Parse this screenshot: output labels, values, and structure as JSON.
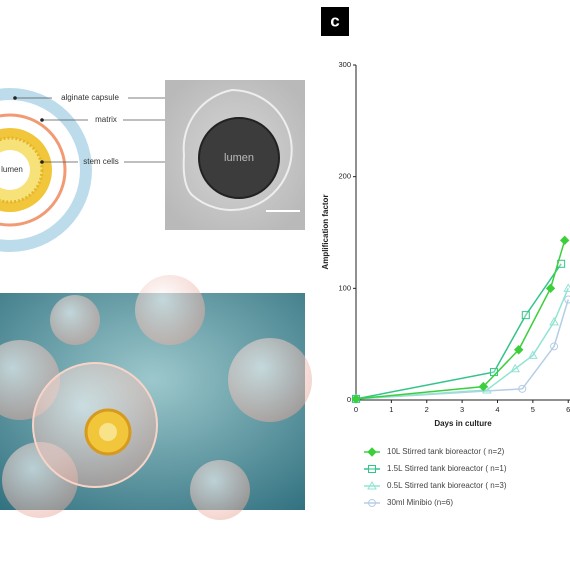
{
  "panel_label": "c",
  "diagram": {
    "labels": [
      "alginate capsule",
      "matrix",
      "stem cells"
    ],
    "center_label": "lumen",
    "micrograph_label": "lumen"
  },
  "chart_data": {
    "type": "line",
    "x_label": "Days in culture",
    "y_label": "Amplification factor",
    "xlim": [
      0,
      6.05
    ],
    "xticks": [
      0,
      1,
      2,
      3,
      4,
      5,
      6
    ],
    "ylim": [
      0,
      300
    ],
    "yticks": [
      0,
      100,
      200,
      300
    ],
    "series": [
      {
        "name": "10L Stirred tank bioreactor ( n=2)",
        "color": "#3ccf3c",
        "marker": "diamond",
        "x": [
          0,
          3.6,
          4.6,
          5.5,
          5.9
        ],
        "values": [
          1,
          12,
          45,
          100,
          143
        ]
      },
      {
        "name": "1.5L Stirred tank bioreactor ( n=1)",
        "color": "#33c48a",
        "marker": "square",
        "x": [
          0,
          3.9,
          4.8,
          5.8
        ],
        "values": [
          1,
          25,
          76,
          122
        ]
      },
      {
        "name": "0.5L Stirred tank bioreactor ( n=3)",
        "color": "#92e3d3",
        "marker": "triangle",
        "x": [
          0,
          3.7,
          4.5,
          5.0,
          5.6,
          6.0
        ],
        "values": [
          1,
          9,
          28,
          40,
          70,
          100
        ]
      },
      {
        "name": "30ml Minibio (n=6)",
        "color": "#b5cde6",
        "marker": "circle",
        "x": [
          0,
          4.7,
          5.6,
          6.0
        ],
        "values": [
          1,
          10,
          48,
          90
        ]
      }
    ]
  }
}
